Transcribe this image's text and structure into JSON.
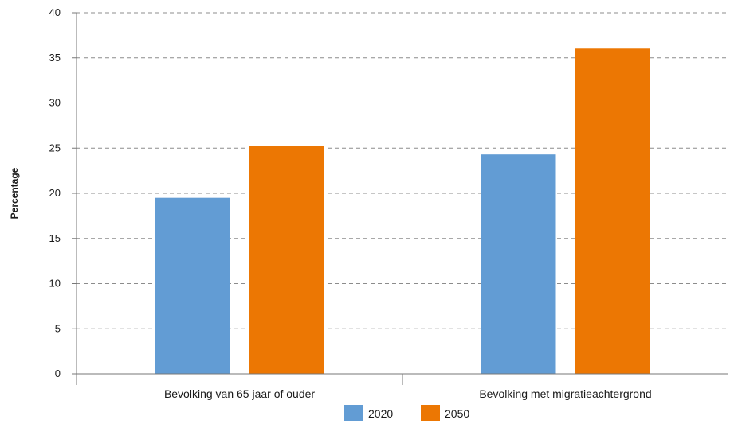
{
  "chart_data": {
    "type": "bar",
    "categories": [
      "Bevolking van 65 jaar of ouder",
      "Bevolking met migratieachtergrond"
    ],
    "series": [
      {
        "name": "2020",
        "values": [
          19.5,
          24.3
        ],
        "color": "#629cd4"
      },
      {
        "name": "2050",
        "values": [
          25.2,
          36.1
        ],
        "color": "#ec7703"
      }
    ],
    "title": "",
    "xlabel": "",
    "ylabel": "Percentage",
    "ylim": [
      0,
      40
    ],
    "yticks": [
      0,
      5,
      10,
      15,
      20,
      25,
      30,
      35,
      40
    ],
    "grid": "dashed horizontal",
    "legend_position": "bottom-center"
  }
}
